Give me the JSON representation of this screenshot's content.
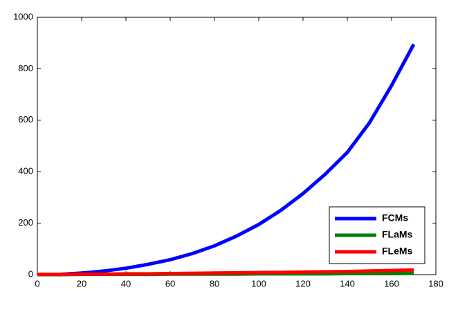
{
  "chart_data": {
    "type": "line",
    "x": [
      0,
      10,
      20,
      30,
      40,
      50,
      60,
      70,
      80,
      90,
      100,
      110,
      120,
      130,
      140,
      150,
      160,
      170
    ],
    "series": [
      {
        "name": "FCMs",
        "color": "#0000ff",
        "values": [
          0,
          1,
          6,
          14,
          25,
          40,
          58,
          82,
          112,
          150,
          195,
          250,
          315,
          390,
          475,
          590,
          735,
          895
        ]
      },
      {
        "name": "FLaMs",
        "color": "#008000",
        "values": [
          0,
          0,
          1,
          1,
          1,
          1,
          2,
          2,
          2,
          2,
          3,
          3,
          3,
          3,
          4,
          4,
          4,
          5
        ]
      },
      {
        "name": "FLeMs",
        "color": "#ff0000",
        "values": [
          1,
          1,
          2,
          2,
          3,
          3,
          4,
          5,
          6,
          7,
          8,
          9,
          10,
          11,
          12,
          14,
          16,
          18
        ]
      }
    ],
    "xlim": [
      0,
      180
    ],
    "xticks": [
      0,
      20,
      40,
      60,
      80,
      100,
      120,
      140,
      160,
      180
    ],
    "ylim": [
      0,
      1000
    ],
    "yticks": [
      0,
      200,
      400,
      600,
      800,
      1000
    ],
    "legend": "lower-right"
  }
}
